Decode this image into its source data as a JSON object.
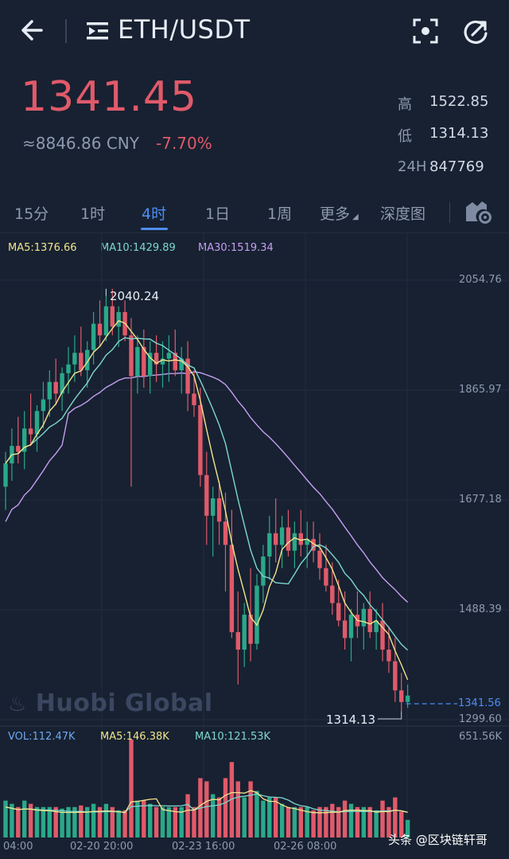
{
  "header": {
    "pair": "ETH/USDT"
  },
  "price": {
    "last": "1341.45",
    "cny": "≈8846.86 CNY",
    "change": "-7.70%"
  },
  "stats": [
    {
      "label": "高",
      "value": "1522.85"
    },
    {
      "label": "低",
      "value": "1314.13"
    },
    {
      "label": "24H",
      "value": "847769"
    }
  ],
  "tabs": [
    "15分",
    "1时",
    "4时",
    "1日",
    "1周",
    "更多",
    "深度图"
  ],
  "active_tab": "4时",
  "colors": {
    "up": "#2aa889",
    "down": "#e05a6a",
    "accent": "#4f8df5",
    "ma5": "#f2e48c",
    "ma10": "#7dd8cf",
    "ma30": "#c79ef2"
  },
  "legend": {
    "ma5": "MA5:1376.66",
    "ma10": "MA10:1429.89",
    "ma30": "MA30:1519.34"
  },
  "vol_legend": {
    "vol": "VOL:112.47K",
    "ma5": "MA5:146.38K",
    "ma10": "MA10:121.53K"
  },
  "chart_data": {
    "type": "candlestick",
    "price_axis_ticks": [
      "2054.76",
      "1865.97",
      "1677.18",
      "1488.39",
      "1299.60"
    ],
    "volume_axis_max": "651.56K",
    "time_ticks": [
      "04:00",
      "02-20 20:00",
      "02-23 16:00",
      "02-26 08:00"
    ],
    "high_marker": "2040.24",
    "low_marker": "1314.13",
    "current_price_tag": "1341.56",
    "ylim": [
      1299.6,
      2054.76
    ],
    "candles": [
      [
        1700,
        1760,
        1660,
        1740
      ],
      [
        1740,
        1800,
        1710,
        1770
      ],
      [
        1770,
        1820,
        1740,
        1760
      ],
      [
        1760,
        1830,
        1730,
        1800
      ],
      [
        1800,
        1860,
        1770,
        1790
      ],
      [
        1790,
        1840,
        1760,
        1830
      ],
      [
        1830,
        1880,
        1800,
        1850
      ],
      [
        1850,
        1900,
        1820,
        1880
      ],
      [
        1880,
        1920,
        1840,
        1860
      ],
      [
        1860,
        1905,
        1830,
        1895
      ],
      [
        1895,
        1940,
        1860,
        1910
      ],
      [
        1910,
        1960,
        1880,
        1930
      ],
      [
        1930,
        1975,
        1890,
        1900
      ],
      [
        1900,
        1950,
        1870,
        1935
      ],
      [
        1935,
        2000,
        1910,
        1980
      ],
      [
        1980,
        2020,
        1940,
        1960
      ],
      [
        1960,
        2040,
        1950,
        2010
      ],
      [
        2010,
        2040,
        1960,
        1975
      ],
      [
        1975,
        2010,
        1940,
        2000
      ],
      [
        2000,
        2020,
        1950,
        1960
      ],
      [
        1960,
        1990,
        1700,
        1890
      ],
      [
        1890,
        1960,
        1860,
        1940
      ],
      [
        1940,
        1970,
        1870,
        1890
      ],
      [
        1890,
        1950,
        1860,
        1930
      ],
      [
        1930,
        1960,
        1880,
        1910
      ],
      [
        1910,
        1950,
        1870,
        1920
      ],
      [
        1920,
        1960,
        1880,
        1930
      ],
      [
        1930,
        1970,
        1890,
        1900
      ],
      [
        1900,
        1940,
        1860,
        1920
      ],
      [
        1920,
        1950,
        1830,
        1860
      ],
      [
        1860,
        1900,
        1820,
        1840
      ],
      [
        1840,
        1870,
        1700,
        1720
      ],
      [
        1720,
        1760,
        1600,
        1650
      ],
      [
        1650,
        1700,
        1580,
        1680
      ],
      [
        1680,
        1710,
        1600,
        1640
      ],
      [
        1640,
        1690,
        1520,
        1600
      ],
      [
        1600,
        1660,
        1440,
        1450
      ],
      [
        1450,
        1520,
        1360,
        1420
      ],
      [
        1420,
        1500,
        1390,
        1480
      ],
      [
        1480,
        1560,
        1400,
        1430
      ],
      [
        1430,
        1550,
        1420,
        1530
      ],
      [
        1530,
        1600,
        1500,
        1580
      ],
      [
        1580,
        1650,
        1540,
        1620
      ],
      [
        1620,
        1680,
        1570,
        1600
      ],
      [
        1600,
        1650,
        1560,
        1630
      ],
      [
        1630,
        1660,
        1580,
        1590
      ],
      [
        1590,
        1640,
        1560,
        1620
      ],
      [
        1620,
        1660,
        1580,
        1600
      ],
      [
        1600,
        1640,
        1560,
        1610
      ],
      [
        1610,
        1640,
        1570,
        1590
      ],
      [
        1590,
        1620,
        1540,
        1560
      ],
      [
        1560,
        1600,
        1520,
        1530
      ],
      [
        1530,
        1570,
        1480,
        1500
      ],
      [
        1500,
        1540,
        1460,
        1470
      ],
      [
        1470,
        1520,
        1420,
        1440
      ],
      [
        1440,
        1490,
        1400,
        1480
      ],
      [
        1480,
        1520,
        1440,
        1460
      ],
      [
        1460,
        1500,
        1420,
        1490
      ],
      [
        1490,
        1520,
        1440,
        1450
      ],
      [
        1450,
        1490,
        1420,
        1470
      ],
      [
        1470,
        1500,
        1400,
        1420
      ],
      [
        1420,
        1460,
        1380,
        1400
      ],
      [
        1400,
        1440,
        1330,
        1350
      ],
      [
        1350,
        1380,
        1314,
        1330
      ],
      [
        1330,
        1360,
        1320,
        1341
      ]
    ],
    "ma5_label": "MA5",
    "ma10_label": "MA10",
    "ma30_label": "MA30"
  },
  "watermark": "Huobi Global",
  "footer_credit": "头条 @区块链轩哥"
}
